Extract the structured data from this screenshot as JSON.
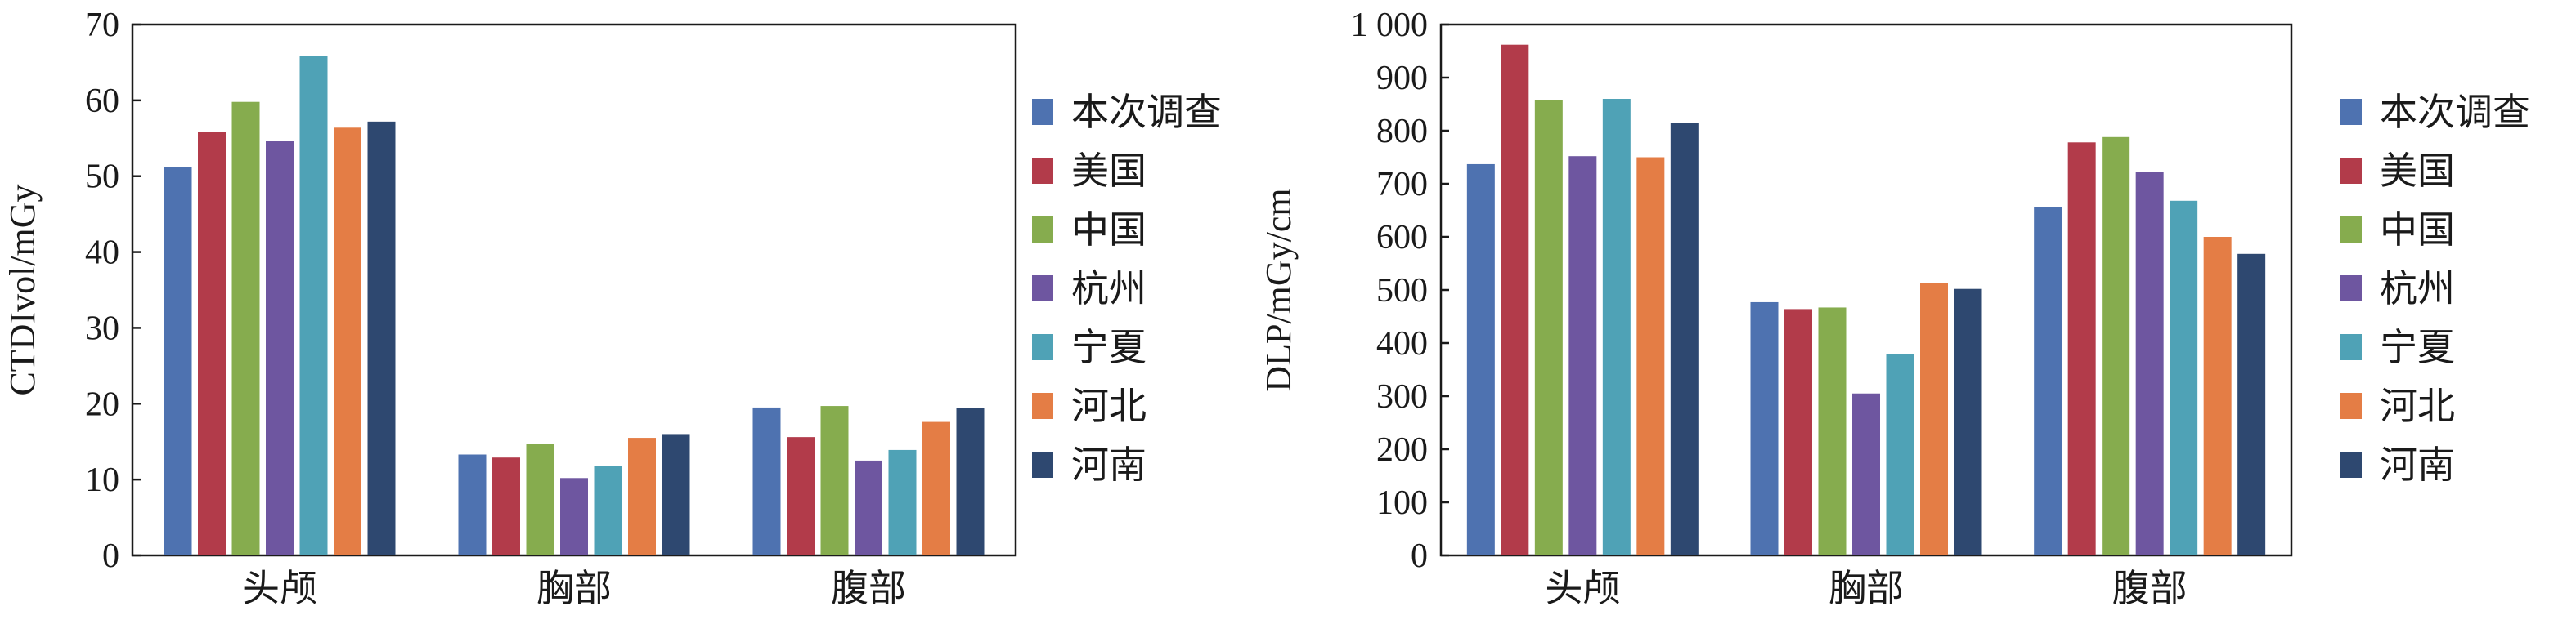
{
  "colors": {
    "本次调查": "#4E72B0",
    "美国": "#B23B4A",
    "中国": "#86AC4E",
    "杭州": "#6E56A0",
    "宁夏": "#4FA2B6",
    "河北": "#E47D45",
    "河南": "#2E4870"
  },
  "chart_data": [
    {
      "type": "bar",
      "title": "",
      "xlabel": "",
      "ylabel": "CTDIvol/mGy",
      "ylim": [
        0,
        70
      ],
      "yticks": [
        0,
        10,
        20,
        30,
        40,
        50,
        60,
        70
      ],
      "ytick_labels": [
        "0",
        "10",
        "20",
        "30",
        "40",
        "50",
        "60",
        "70"
      ],
      "grid": false,
      "legend_position": "right",
      "categories": [
        "头颅",
        "胸部",
        "腹部"
      ],
      "series": [
        {
          "name": "本次调查",
          "values": [
            51.2,
            13.3,
            19.5
          ]
        },
        {
          "name": "美国",
          "values": [
            55.8,
            12.9,
            15.6
          ]
        },
        {
          "name": "中国",
          "values": [
            59.8,
            14.7,
            19.7
          ]
        },
        {
          "name": "杭州",
          "values": [
            54.6,
            10.2,
            12.5
          ]
        },
        {
          "name": "宁夏",
          "values": [
            65.8,
            11.8,
            13.9
          ]
        },
        {
          "name": "河北",
          "values": [
            56.4,
            15.5,
            17.6
          ]
        },
        {
          "name": "河南",
          "values": [
            57.2,
            16.0,
            19.4
          ]
        }
      ]
    },
    {
      "type": "bar",
      "title": "",
      "xlabel": "",
      "ylabel": "DLP/mGy/cm",
      "ylim": [
        0,
        1000
      ],
      "yticks": [
        0,
        100,
        200,
        300,
        400,
        500,
        600,
        700,
        800,
        900,
        1000
      ],
      "ytick_labels": [
        "0",
        "100",
        "200",
        "300",
        "400",
        "500",
        "600",
        "700",
        "800",
        "900",
        "1 000"
      ],
      "grid": false,
      "legend_position": "right",
      "categories": [
        "头颅",
        "胸部",
        "腹部"
      ],
      "series": [
        {
          "name": "本次调查",
          "values": [
            737,
            477,
            656
          ]
        },
        {
          "name": "美国",
          "values": [
            962,
            464,
            778
          ]
        },
        {
          "name": "中国",
          "values": [
            857,
            467,
            788
          ]
        },
        {
          "name": "杭州",
          "values": [
            752,
            305,
            722
          ]
        },
        {
          "name": "宁夏",
          "values": [
            860,
            380,
            668
          ]
        },
        {
          "name": "河北",
          "values": [
            750,
            513,
            600
          ]
        },
        {
          "name": "河南",
          "values": [
            814,
            502,
            568
          ]
        }
      ]
    }
  ]
}
